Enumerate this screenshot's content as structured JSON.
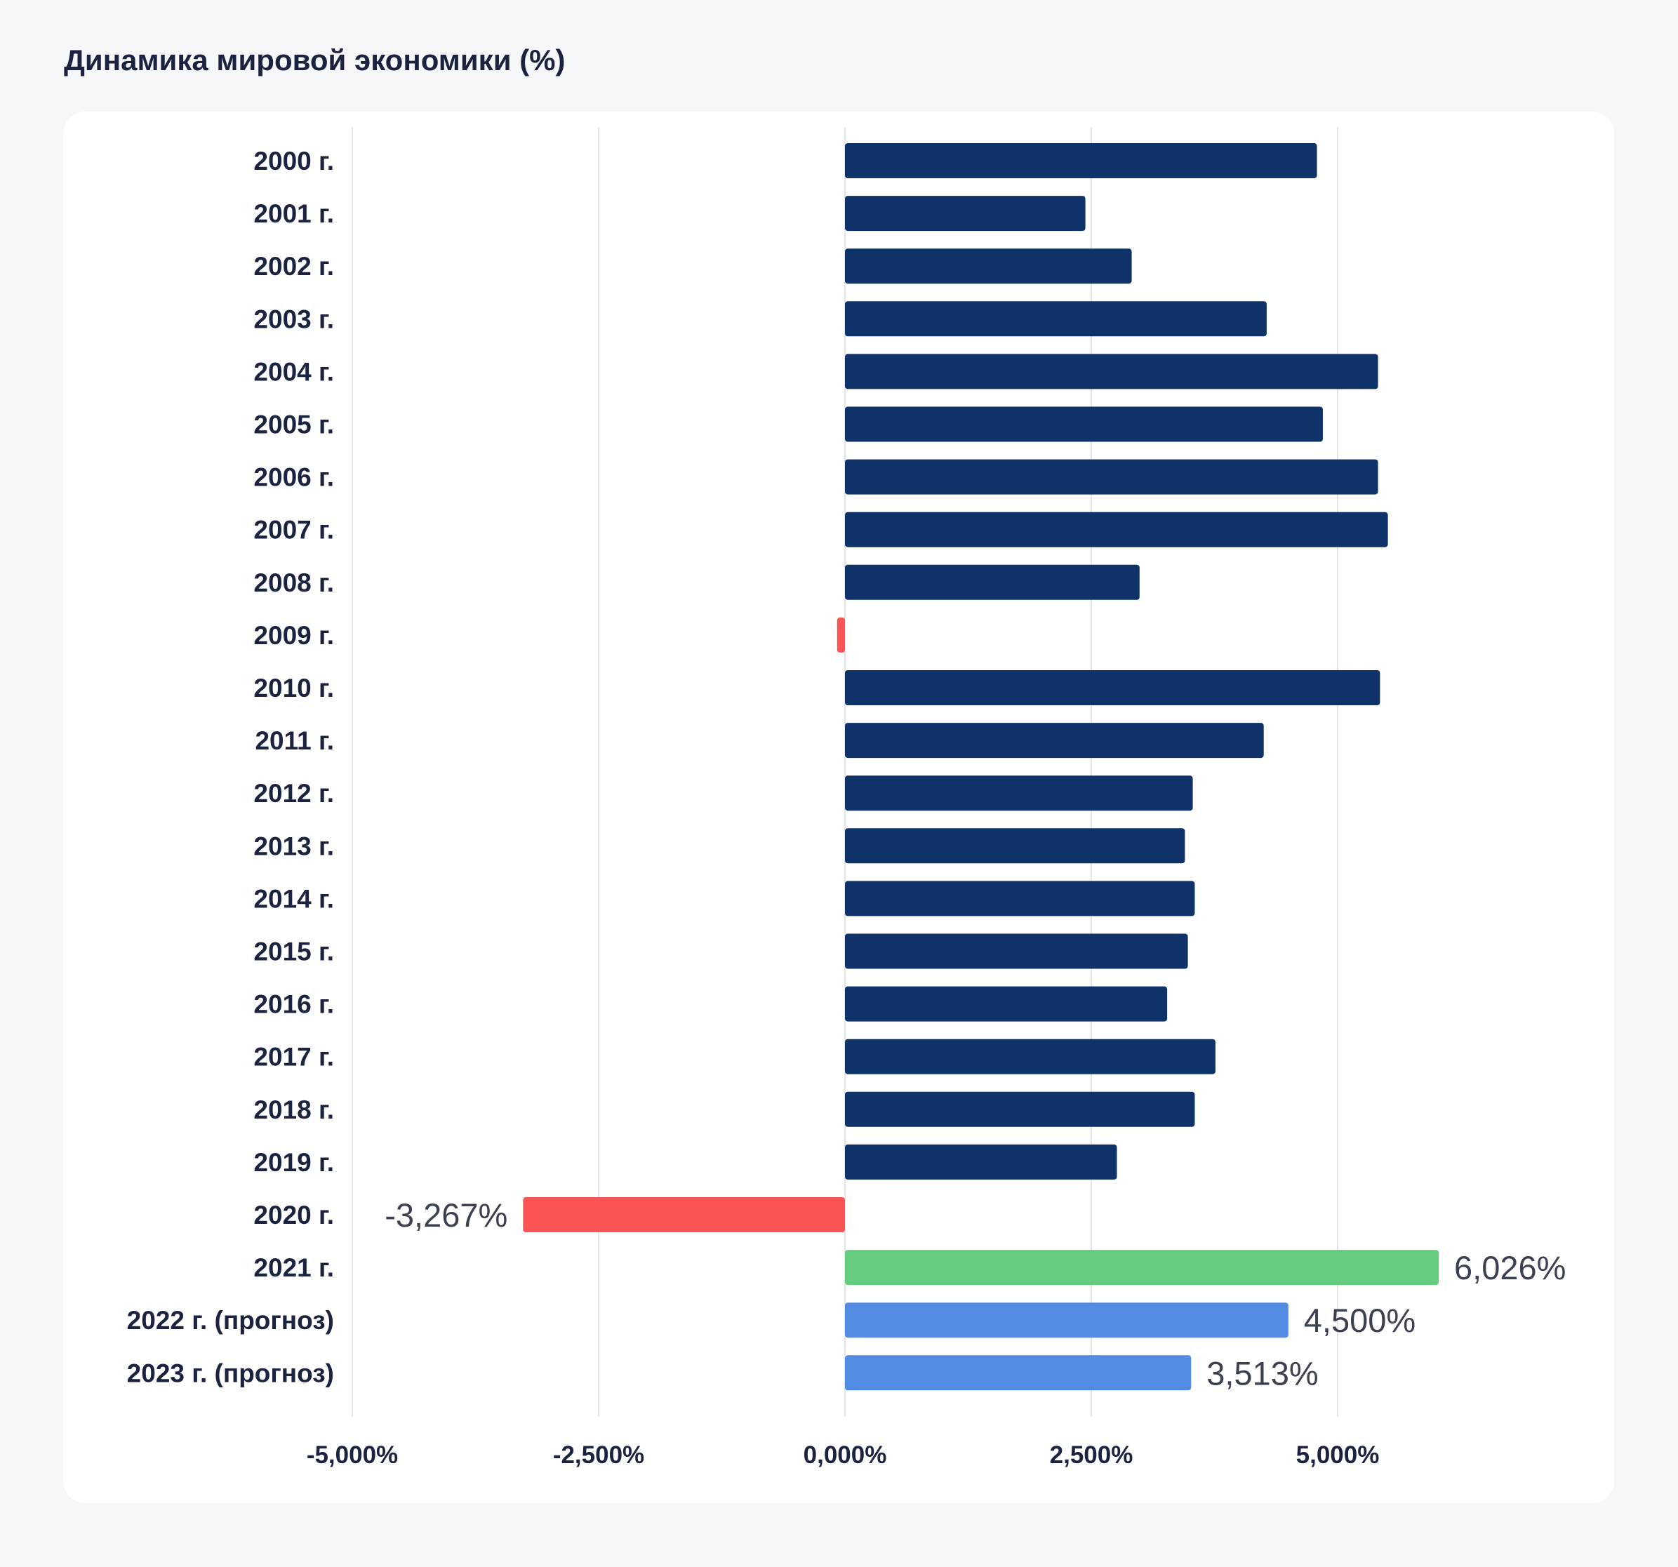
{
  "chart_data": {
    "type": "bar",
    "orientation": "horizontal",
    "title": "Динамика мировой экономики (%)",
    "xlabel": "",
    "ylabel": "",
    "xlim": [
      -5,
      7.2
    ],
    "xticks": [
      -5,
      -2.5,
      0,
      2.5,
      5
    ],
    "xtick_labels": [
      "-5,000%",
      "-2,500%",
      "0,000%",
      "2,500%",
      "5,000%"
    ],
    "grid": true,
    "legend": "none",
    "categories": [
      "2000 г.",
      "2001 г.",
      "2002 г.",
      "2003 г.",
      "2004 г.",
      "2005 г.",
      "2006 г.",
      "2007 г.",
      "2008 г.",
      "2009 г.",
      "2010 г.",
      "2011 г.",
      "2012 г.",
      "2013 г.",
      "2014 г.",
      "2015 г.",
      "2016 г.",
      "2017 г.",
      "2018 г.",
      "2019 г.",
      "2020 г.",
      "2021 г.",
      "2022 г. (прогноз)",
      "2023 г. (прогноз)"
    ],
    "values": [
      4.79,
      2.44,
      2.91,
      4.28,
      5.41,
      4.85,
      5.41,
      5.51,
      2.99,
      -0.08,
      5.43,
      4.25,
      3.53,
      3.45,
      3.55,
      3.48,
      3.27,
      3.76,
      3.55,
      2.76,
      -3.267,
      6.026,
      4.5,
      3.513
    ],
    "data_labels": [
      "",
      "",
      "",
      "",
      "",
      "",
      "",
      "",
      "",
      "",
      "",
      "",
      "",
      "",
      "",
      "",
      "",
      "",
      "",
      "",
      "-3,267%",
      "6,026%",
      "4,500%",
      "3,513%"
    ],
    "bar_colors": [
      "#0f3368",
      "#0f3368",
      "#0f3368",
      "#0f3368",
      "#0f3368",
      "#0f3368",
      "#0f3368",
      "#0f3368",
      "#0f3368",
      "#fa5455",
      "#0f3368",
      "#0f3368",
      "#0f3368",
      "#0f3368",
      "#0f3368",
      "#0f3368",
      "#0f3368",
      "#0f3368",
      "#0f3368",
      "#0f3368",
      "#fa5455",
      "#66cc7f",
      "#518be2",
      "#518be2"
    ]
  },
  "colors": {
    "background": "#f6f7f9",
    "card": "#ffffff",
    "text": "#1c2340",
    "grid": "#e3e5ea",
    "growth": "#0f3368",
    "decline": "#fa5455",
    "record": "#66cc7f",
    "forecast": "#518be2"
  }
}
